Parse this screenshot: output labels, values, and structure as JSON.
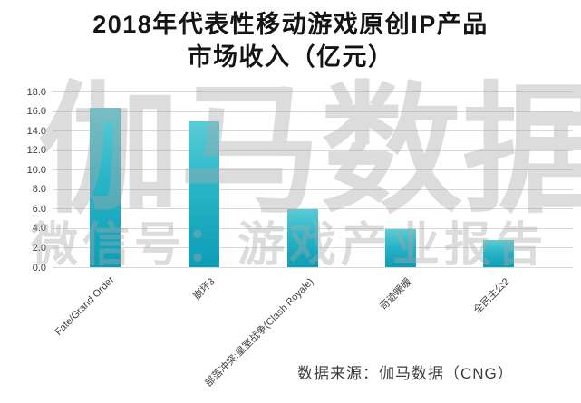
{
  "title": {
    "line1": "2018年代表性移动游戏原创IP产品",
    "line2": "市场收入（亿元）"
  },
  "watermark": {
    "main": "伽马数据",
    "sub": "微信号：游戏产业报告"
  },
  "source_text": "数据来源：伽马数据（CNG）",
  "chart_data": {
    "type": "bar",
    "title": "2018年代表性移动游戏原创IP产品市场收入（亿元）",
    "categories": [
      "Fate/Grand Order",
      "崩坏3",
      "部落冲突:皇室战争(Clash Royale)",
      "奇迹暖暖",
      "全民主公2"
    ],
    "values": [
      16.3,
      14.9,
      5.9,
      3.9,
      2.8
    ],
    "xlabel": "",
    "ylabel": "",
    "ylim": [
      0,
      18
    ],
    "ytick_labels": [
      "18.0",
      "16.0",
      "14.0",
      "12.0",
      "10.0",
      "8.0",
      "6.0",
      "4.0",
      "2.0",
      "0.0"
    ],
    "grid": true,
    "legend": false,
    "bar_color_top": "#5accd6",
    "bar_color_bottom": "#0c9db6",
    "gridline_color": "#d8d8d8"
  }
}
